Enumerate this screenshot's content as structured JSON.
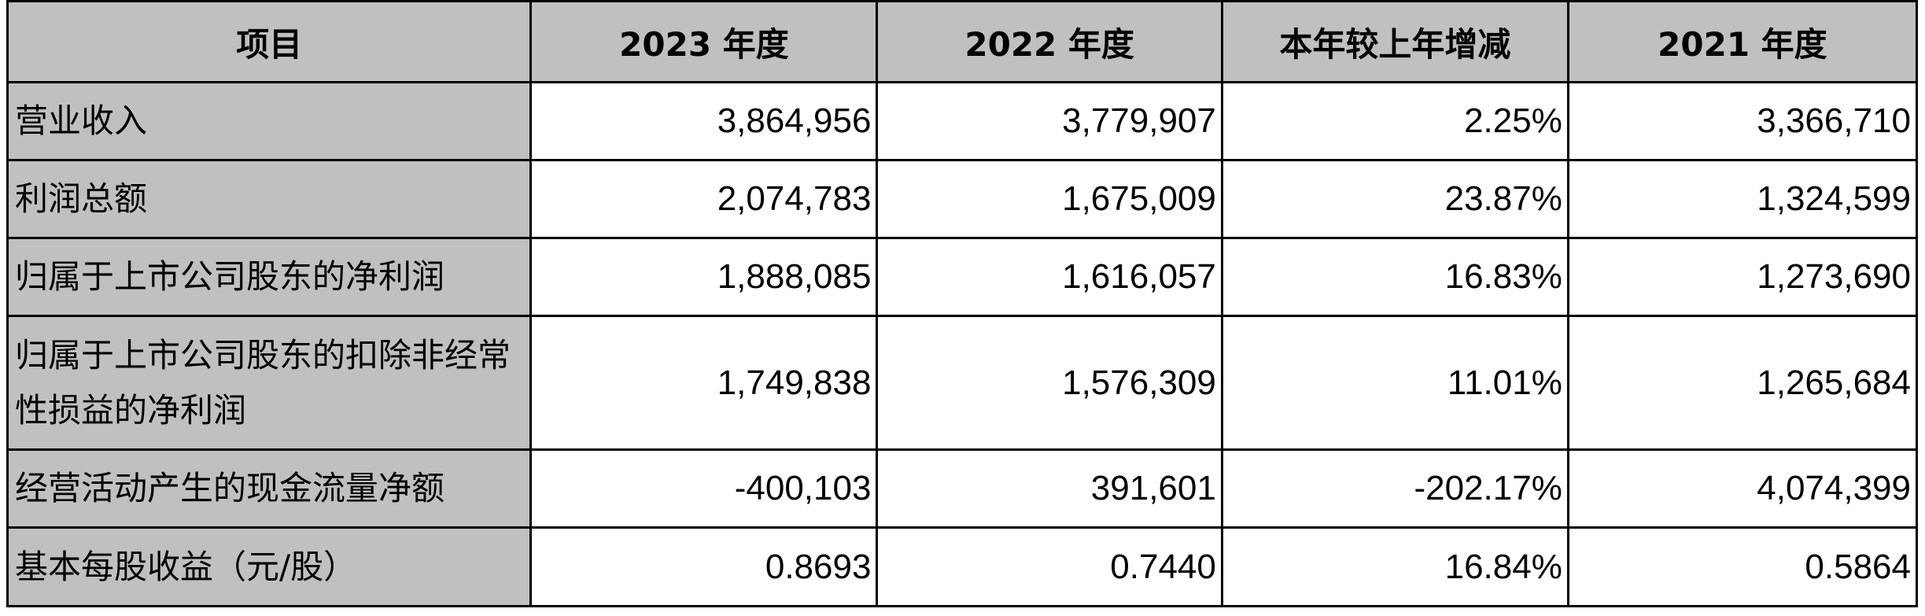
{
  "table": {
    "headers": [
      "项目",
      "2023 年度",
      "2022 年度",
      "本年较上年增减",
      "2021 年度"
    ],
    "rows": [
      {
        "label": "营业收入",
        "values": [
          "3,864,956",
          "3,779,907",
          "2.25%",
          "3,366,710"
        ]
      },
      {
        "label": "利润总额",
        "values": [
          "2,074,783",
          "1,675,009",
          "23.87%",
          "1,324,599"
        ]
      },
      {
        "label": "归属于上市公司股东的净利润",
        "values": [
          "1,888,085",
          "1,616,057",
          "16.83%",
          "1,273,690"
        ]
      },
      {
        "label": "归属于上市公司股东的扣除非经常性损益的净利润",
        "values": [
          "1,749,838",
          "1,576,309",
          "11.01%",
          "1,265,684"
        ]
      },
      {
        "label": "经营活动产生的现金流量净额",
        "values": [
          "-400,103",
          "391,601",
          "-202.17%",
          "4,074,399"
        ]
      },
      {
        "label": "基本每股收益（元/股）",
        "values": [
          "0.8693",
          "0.7440",
          "16.84%",
          "0.5864"
        ]
      }
    ]
  },
  "colors": {
    "header_bg": "#c0c0c0",
    "label_bg": "#c0c0c0",
    "cell_bg": "#ffffff",
    "border": "#000000"
  }
}
